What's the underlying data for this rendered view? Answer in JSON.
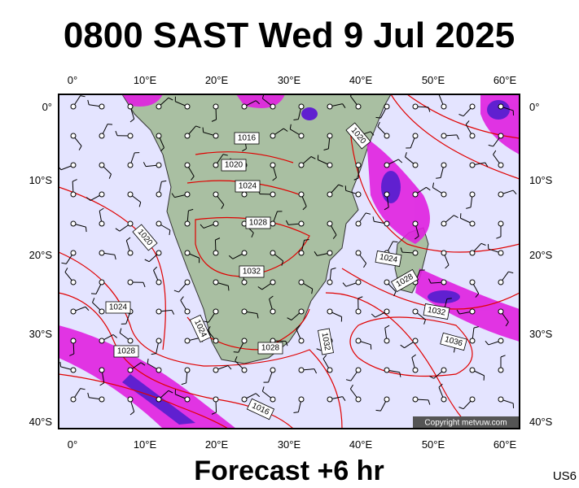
{
  "header": {
    "title": "0800 SAST Wed 9 Jul 2025"
  },
  "map": {
    "lon_labels": [
      "0°",
      "10°E",
      "20°E",
      "30°E",
      "40°E",
      "50°E",
      "60°E"
    ],
    "lat_labels": [
      "0°",
      "10°S",
      "20°S",
      "30°S",
      "40°S"
    ],
    "isobar_labels": [
      "1016",
      "1020",
      "1024",
      "1028",
      "1032",
      "1020",
      "1024",
      "1028",
      "1024",
      "1028",
      "1032",
      "1036",
      "1032",
      "1024",
      "1028",
      "1020",
      "1016"
    ],
    "copyright": "Copyright metvuw.com"
  },
  "footer": {
    "subtitle": "Forecast +6 hr",
    "tag": "US6"
  }
}
